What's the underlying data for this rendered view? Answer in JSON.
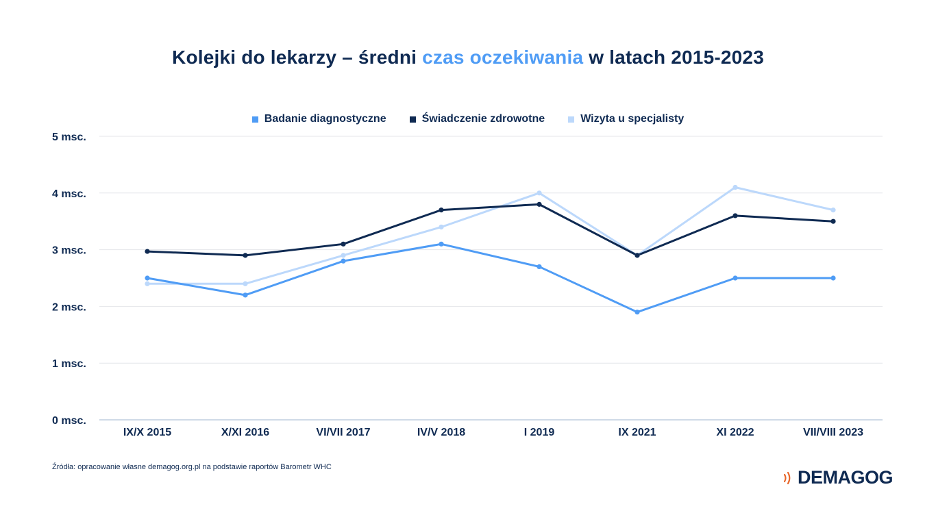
{
  "title": {
    "part1": "Kolejki do lekarzy – średni ",
    "accent": "czas oczekiwania",
    "part2": " w latach 2015-2023"
  },
  "source": "Źródła: opracowanie własne demagog.org.pl na podstawie raportów Barometr WHC",
  "logo": {
    "text": "DEMAGOG",
    "icon": "sound-waves-icon",
    "icon_color": "#e8672a"
  },
  "colors": {
    "accent": "#4f9cf5",
    "dark": "#0f2a52",
    "light": "#bcd8fb",
    "grid": "#e4e6ea",
    "axis": "#9fb6cf"
  },
  "chart_data": {
    "type": "line",
    "categories": [
      "IX/X 2015",
      "X/XI 2016",
      "VI/VII 2017",
      "IV/V 2018",
      "I 2019",
      "IX 2021",
      "XI 2022",
      "VII/VIII 2023"
    ],
    "ytick_labels": [
      "0 msc.",
      "1 msc.",
      "2 msc.",
      "3 msc.",
      "4 msc.",
      "5 msc."
    ],
    "ylim": [
      0,
      5
    ],
    "grid": true,
    "legend_position": "top-center",
    "series": [
      {
        "name": "Badanie diagnostyczne",
        "color": "#4f9cf5",
        "values": [
          2.5,
          2.2,
          2.8,
          3.1,
          2.7,
          1.9,
          2.5,
          2.5
        ]
      },
      {
        "name": "Świadczenie zdrowotne",
        "color": "#0f2a52",
        "values": [
          2.97,
          2.9,
          3.1,
          3.7,
          3.8,
          2.9,
          3.6,
          3.5
        ]
      },
      {
        "name": "Wizyta u specjalisty",
        "color": "#bcd8fb",
        "values": [
          2.4,
          2.4,
          2.9,
          3.4,
          4.0,
          2.9,
          4.1,
          3.7
        ]
      }
    ]
  }
}
